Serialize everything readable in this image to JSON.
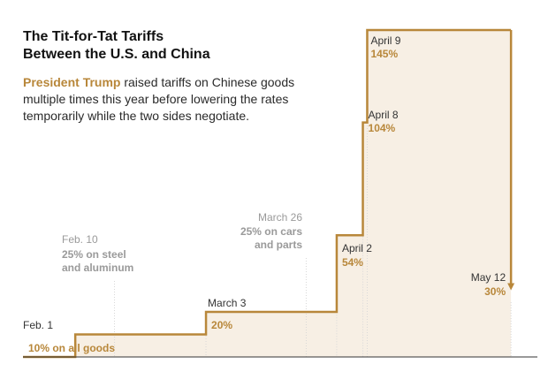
{
  "header": {
    "title_line1": "The Tit-for-Tat Tariffs",
    "title_line2": "Between the U.S. and China",
    "subtitle_accent": "President Trump",
    "subtitle_rest": " raised tariffs on Chinese goods multiple times this year before lowering the rates temporarily while the two sides negotiate."
  },
  "colors": {
    "line": "#b8873a",
    "fill": "#f7efe4",
    "gray_text": "#9a9a9a",
    "baseline": "#333333"
  },
  "chart_data": {
    "type": "line",
    "step": true,
    "title": "The Tit-for-Tat Tariffs Between the U.S. and China",
    "xlabel": "",
    "ylabel": "",
    "ylim": [
      0,
      145
    ],
    "x_range": [
      "2025-01-20",
      "2025-05-14"
    ],
    "series": [
      {
        "name": "",
        "points": [
          {
            "date": "2025-01-20",
            "value": 0
          },
          {
            "date": "2025-02-01",
            "value": 10
          },
          {
            "date": "2025-03-03",
            "value": 20
          },
          {
            "date": "2025-04-02",
            "value": 54
          },
          {
            "date": "2025-04-08",
            "value": 104
          },
          {
            "date": "2025-04-09",
            "value": 145
          },
          {
            "date": "2025-05-12",
            "value": 30
          }
        ]
      }
    ],
    "annotations": [
      {
        "id": "feb1",
        "date": "2025-02-01",
        "date_label": "Feb. 1",
        "value_label": "10% on all goods",
        "style": "main"
      },
      {
        "id": "mar3",
        "date": "2025-03-03",
        "date_label": "March 3",
        "value_label": "20%",
        "style": "main"
      },
      {
        "id": "apr2",
        "date": "2025-04-02",
        "date_label": "April 2",
        "value_label": "54%",
        "style": "main"
      },
      {
        "id": "apr8",
        "date": "2025-04-08",
        "date_label": "April 8",
        "value_label": "104%",
        "style": "main"
      },
      {
        "id": "apr9",
        "date": "2025-04-09",
        "date_label": "April 9",
        "value_label": "145%",
        "style": "main"
      },
      {
        "id": "may12",
        "date": "2025-05-12",
        "date_label": "May 12",
        "value_label": "30%",
        "style": "main"
      },
      {
        "id": "feb10",
        "date": "2025-02-10",
        "date_label": "Feb. 10",
        "value_label": "25% on steel and aluminum",
        "value_lines": [
          "25% on steel",
          "and aluminum"
        ],
        "style": "gray"
      },
      {
        "id": "mar26",
        "date": "2025-03-26",
        "date_label": "March 26",
        "value_label": "25% on cars and parts",
        "value_lines": [
          "25% on cars",
          "and parts"
        ],
        "style": "gray"
      }
    ]
  }
}
